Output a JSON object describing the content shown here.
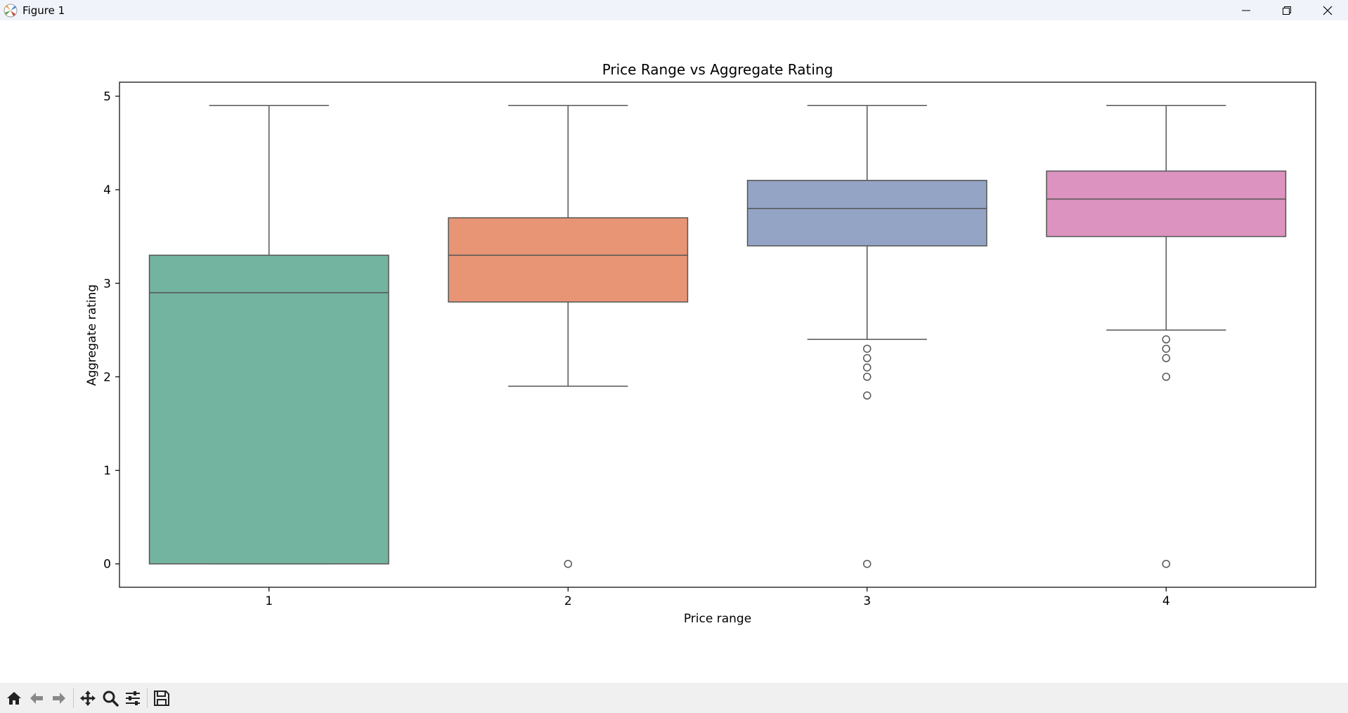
{
  "window": {
    "title": "Figure 1",
    "icons": [
      "matplotlib-logo-icon",
      "minimize-icon",
      "maximize-icon",
      "close-icon"
    ]
  },
  "toolbar": {
    "buttons": [
      "home-icon",
      "back-arrow-icon",
      "forward-arrow-icon",
      "pan-icon",
      "zoom-icon",
      "configure-subplots-icon",
      "save-icon"
    ]
  },
  "chart_data": {
    "type": "box",
    "title": "Price Range vs Aggregate Rating",
    "xlabel": "Price range",
    "ylabel": "Aggregate rating",
    "categories": [
      "1",
      "2",
      "3",
      "4"
    ],
    "ylim": [
      -0.25,
      5.15
    ],
    "yticks": [
      0,
      1,
      2,
      3,
      4,
      5
    ],
    "grid": false,
    "colors": [
      "#73b4a0",
      "#e89575",
      "#94a4c4",
      "#dc93bf"
    ],
    "edge_color": "#555555",
    "boxes": [
      {
        "category": "1",
        "whisker_low": 0.0,
        "q1": 0.0,
        "median": 2.9,
        "q3": 3.3,
        "whisker_high": 4.9,
        "outliers": []
      },
      {
        "category": "2",
        "whisker_low": 1.9,
        "q1": 2.8,
        "median": 3.3,
        "q3": 3.7,
        "whisker_high": 4.9,
        "outliers": [
          0.0
        ]
      },
      {
        "category": "3",
        "whisker_low": 2.4,
        "q1": 3.4,
        "median": 3.8,
        "q3": 4.1,
        "whisker_high": 4.9,
        "outliers": [
          2.3,
          2.2,
          2.1,
          2.0,
          1.8,
          0.0
        ]
      },
      {
        "category": "4",
        "whisker_low": 2.5,
        "q1": 3.5,
        "median": 3.9,
        "q3": 4.2,
        "whisker_high": 4.9,
        "outliers": [
          2.4,
          2.3,
          2.2,
          2.0,
          0.0
        ]
      }
    ]
  }
}
